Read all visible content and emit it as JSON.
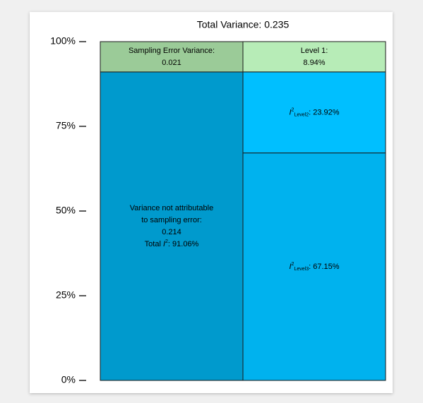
{
  "chart_data": {
    "type": "mosaic",
    "title": "Total Variance: 0.235",
    "ylim": [
      0,
      100
    ],
    "yticks": [
      {
        "value": 0,
        "label": "0%"
      },
      {
        "value": 25,
        "label": "25%"
      },
      {
        "value": 50,
        "label": "50%"
      },
      {
        "value": 75,
        "label": "75%"
      },
      {
        "value": 100,
        "label": "100%"
      }
    ],
    "columns": [
      {
        "segments": [
          {
            "value": 91.06,
            "color": "#009acd",
            "label_lines": [
              [
                {
                  "text": "Variance not attributable"
                }
              ],
              [
                {
                  "text": "to sampling error:"
                }
              ],
              [
                {
                  "text": "0.214"
                }
              ],
              [
                {
                  "text": "Total "
                },
                {
                  "text": "I",
                  "style": "italic"
                },
                {
                  "text": "2",
                  "style": "sup"
                },
                {
                  "text": ": 91.06%"
                }
              ]
            ]
          },
          {
            "value": 8.94,
            "color": "#9bcb98",
            "label_lines": [
              [
                {
                  "text": "Sampling Error Variance:"
                }
              ],
              [
                {
                  "text": "0.021"
                }
              ]
            ]
          }
        ]
      },
      {
        "segments": [
          {
            "value": 67.15,
            "color": "#00b2ee",
            "label_lines": [
              [
                {
                  "text": "I",
                  "style": "italic"
                },
                {
                  "text": "2",
                  "style": "sup"
                },
                {
                  "text": "Level3",
                  "style": "sub"
                },
                {
                  "text": ": 67.15%"
                }
              ]
            ]
          },
          {
            "value": 23.92,
            "color": "#00bfff",
            "label_lines": [
              [
                {
                  "text": "I",
                  "style": "italic"
                },
                {
                  "text": "2",
                  "style": "sup"
                },
                {
                  "text": "Level2",
                  "style": "sub"
                },
                {
                  "text": ": 23.92%"
                }
              ]
            ]
          },
          {
            "value": 8.94,
            "color": "#b7ecb7",
            "label_lines": [
              [
                {
                  "text": "Level 1:"
                }
              ],
              [
                {
                  "text": "8.94%"
                }
              ]
            ]
          }
        ]
      }
    ]
  }
}
